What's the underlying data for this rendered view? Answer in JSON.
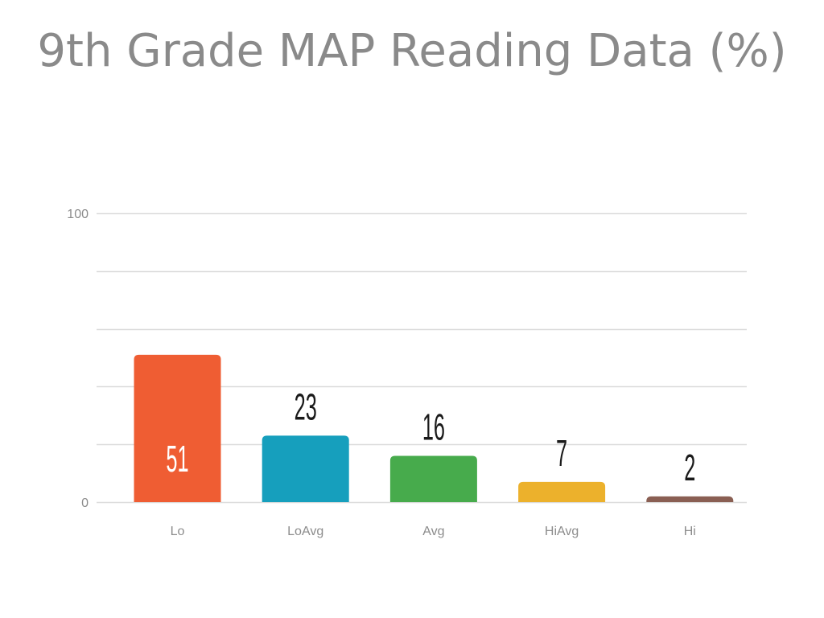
{
  "chart_data": {
    "type": "bar",
    "title": "9th Grade MAP Reading Data (%)",
    "categories": [
      "Lo",
      "LoAvg",
      "Avg",
      "HiAvg",
      "Hi"
    ],
    "values": [
      51,
      23,
      16,
      7,
      2
    ],
    "colors": [
      "#ef5d33",
      "#169fbd",
      "#47ab4c",
      "#ecb12c",
      "#8a5f53"
    ],
    "label_colors": [
      "#ffffff",
      "#1a1a1a",
      "#1a1a1a",
      "#1a1a1a",
      "#1a1a1a"
    ],
    "label_inside": [
      true,
      false,
      false,
      false,
      false
    ],
    "ylim": [
      0,
      100
    ],
    "yticks": [
      0,
      100
    ],
    "grid": true,
    "gridline_count": 5,
    "grid_color": "#dcdcdc",
    "xlabel": "",
    "ylabel": ""
  }
}
